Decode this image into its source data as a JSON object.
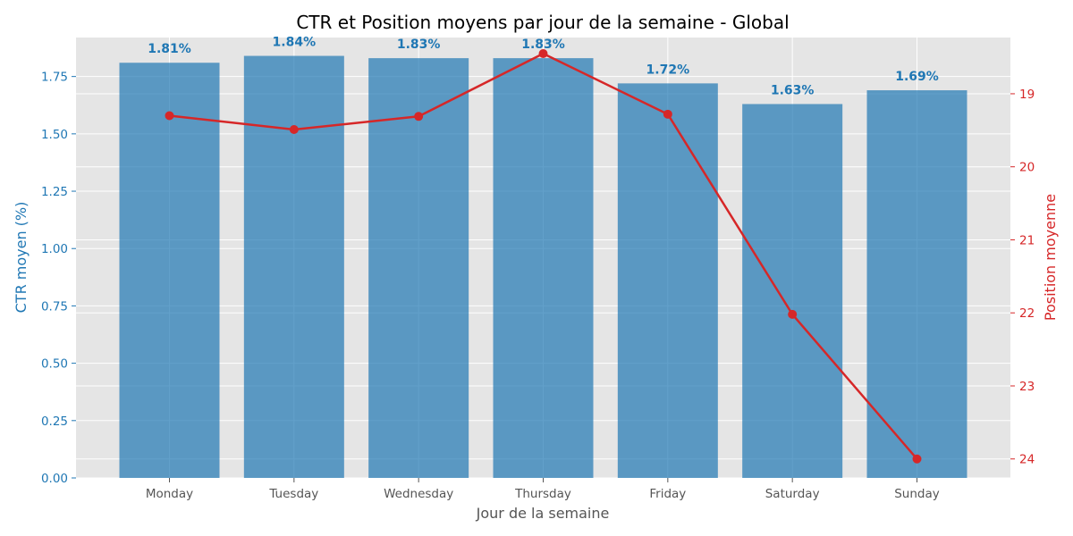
{
  "chart_data": {
    "type": "bar",
    "title": "CTR et Position moyens par jour de la semaine - Global",
    "xlabel": "Jour de la semaine",
    "ylabel": "CTR moyen (%)",
    "y2label": "Position moyenne",
    "categories": [
      "Monday",
      "Tuesday",
      "Wednesday",
      "Thursday",
      "Friday",
      "Saturday",
      "Sunday"
    ],
    "series": [
      {
        "type": "bar",
        "axis": "left",
        "values": [
          1.81,
          1.84,
          1.83,
          1.83,
          1.72,
          1.63,
          1.69
        ],
        "labels": [
          "1.81%",
          "1.84%",
          "1.83%",
          "1.83%",
          "1.72%",
          "1.63%",
          "1.69%"
        ]
      },
      {
        "type": "line",
        "axis": "right",
        "values": [
          19.3,
          19.49,
          19.31,
          18.45,
          19.28,
          22.02,
          24.0
        ]
      }
    ],
    "ylim": [
      0,
      1.92
    ],
    "yticks": [
      "0.00",
      "0.25",
      "0.50",
      "0.75",
      "1.00",
      "1.25",
      "1.50",
      "1.75"
    ],
    "y2lim": [
      24.26,
      18.23
    ],
    "y2ticks": [
      "19",
      "20",
      "21",
      "22",
      "23",
      "24"
    ],
    "y2_inverted": true,
    "grid": true,
    "colors": {
      "bar": "#1f77b4",
      "line": "#d62728",
      "plot_background": "#e5e5e5",
      "left_axis_text": "#1f77b4",
      "right_axis_text": "#d62728",
      "tick_text": "#555555"
    }
  }
}
